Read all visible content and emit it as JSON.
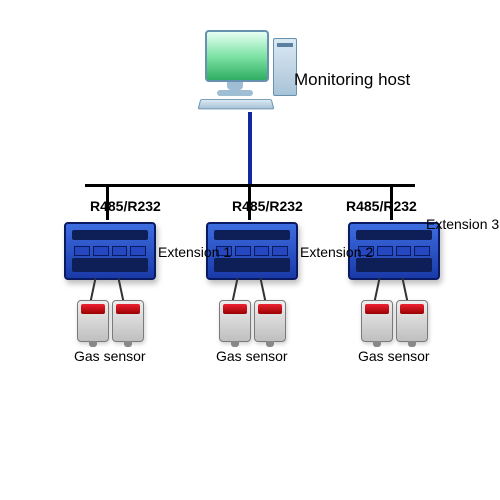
{
  "type": "network",
  "host": {
    "label": "Monitoring host",
    "label_fontsize": 17,
    "monitor_gradient": [
      "#e6fff2",
      "#7fe3a6",
      "#2fae62"
    ],
    "case_color": "#a8c3d8",
    "border_color": "#6691b0"
  },
  "bus": {
    "protocol_label": "R485/R232",
    "protocol_fontsize": 14,
    "vertical_color": "#1226a0",
    "horizontal_color": "#000000"
  },
  "extensions": [
    {
      "label": "Extension 1",
      "body_gradient": [
        "#3d6de0",
        "#1a3aa8"
      ],
      "border_color": "#0a1a60"
    },
    {
      "label": "Extension 2",
      "body_gradient": [
        "#3d6de0",
        "#1a3aa8"
      ],
      "border_color": "#0a1a60"
    },
    {
      "label": "Extension 3",
      "body_gradient": [
        "#3d6de0",
        "#1a3aa8"
      ],
      "border_color": "#0a1a60"
    }
  ],
  "extension_label_fontsize": 14,
  "sensor": {
    "label": "Gas sensor",
    "label_fontsize": 14,
    "body_gradient": [
      "#eeeeee",
      "#bfbfbf"
    ],
    "display_gradient": [
      "#ee2233",
      "#990000"
    ],
    "per_extension": 2
  },
  "background_color": "#ffffff"
}
